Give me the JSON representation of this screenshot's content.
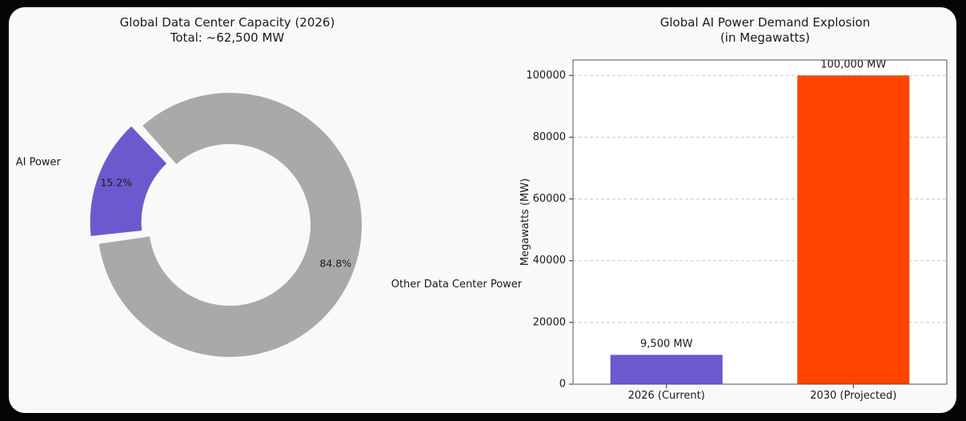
{
  "chart_data": [
    {
      "type": "pie",
      "style": "donut",
      "title": "Global Data Center Capacity (2026)",
      "subtitle": "Total: ~62,500 MW",
      "slices": [
        {
          "label": "AI Power",
          "value": 15.2,
          "display": "15.2%",
          "color": "#6a5acd",
          "exploded": true
        },
        {
          "label": "Other Data Center Power",
          "value": 84.8,
          "display": "84.8%",
          "color": "#a9a9a9",
          "exploded": false
        }
      ]
    },
    {
      "type": "bar",
      "title": "Global AI Power Demand Explosion",
      "subtitle": "(in Megawatts)",
      "categories": [
        "2026 (Current)",
        "2030 (Projected)"
      ],
      "values": [
        9500,
        100000
      ],
      "value_labels": [
        "9,500 MW",
        "100,000 MW"
      ],
      "colors": [
        "#6a5acd",
        "#ff4500"
      ],
      "ylabel": "Megawatts (MW)",
      "ylim": [
        0,
        105000
      ],
      "yticks": [
        0,
        20000,
        40000,
        60000,
        80000,
        100000
      ],
      "ytick_labels": [
        "0",
        "20000",
        "40000",
        "60000",
        "80000",
        "100000"
      ],
      "grid": "y-dashed"
    }
  ]
}
